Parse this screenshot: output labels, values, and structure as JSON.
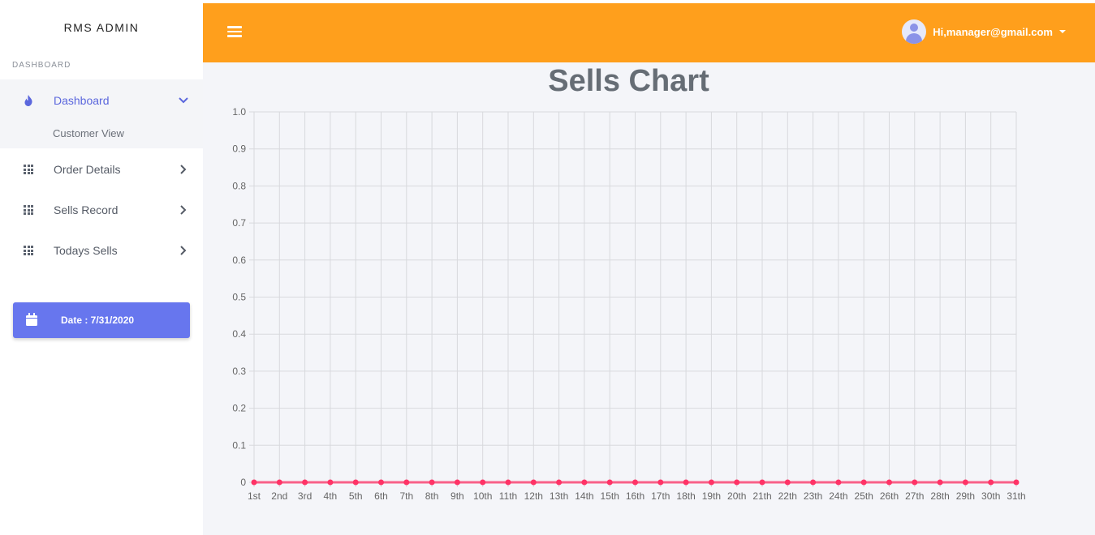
{
  "sidebar": {
    "brand": "RMS ADMIN",
    "section_label": "DASHBOARD",
    "items": [
      {
        "label": "Dashboard",
        "icon": "flame-icon",
        "active": true,
        "expanded": true
      },
      {
        "label": "Order Details",
        "icon": "grid-icon"
      },
      {
        "label": "Sells Record",
        "icon": "grid-icon"
      },
      {
        "label": "Todays Sells",
        "icon": "grid-icon"
      }
    ],
    "sub_items": [
      {
        "label": "Customer View"
      }
    ],
    "date_button": {
      "label": "Date : 7/31/2020",
      "icon": "calendar-icon"
    }
  },
  "header": {
    "menu_icon": "hamburger-icon",
    "user_label": "Hi,manager@gmail.com",
    "avatar_icon": "user-avatar-icon",
    "colors": {
      "bar": "#ff9f1c"
    }
  },
  "main": {
    "title": "Sells Chart"
  },
  "chart_data": {
    "type": "line",
    "title": "Sells Chart",
    "xlabel": "",
    "ylabel": "",
    "categories": [
      "1st",
      "2nd",
      "3rd",
      "4th",
      "5th",
      "6th",
      "7th",
      "8th",
      "9th",
      "10th",
      "11th",
      "12th",
      "13th",
      "14th",
      "15th",
      "16th",
      "17th",
      "18th",
      "19th",
      "20th",
      "21th",
      "22th",
      "23th",
      "24th",
      "25th",
      "26th",
      "27th",
      "28th",
      "29th",
      "30th",
      "31th"
    ],
    "values": [
      0,
      0,
      0,
      0,
      0,
      0,
      0,
      0,
      0,
      0,
      0,
      0,
      0,
      0,
      0,
      0,
      0,
      0,
      0,
      0,
      0,
      0,
      0,
      0,
      0,
      0,
      0,
      0,
      0,
      0,
      0
    ],
    "ylim": [
      0,
      1
    ],
    "yticks": [
      "0",
      "0.1",
      "0.2",
      "0.3",
      "0.4",
      "0.5",
      "0.6",
      "0.7",
      "0.8",
      "0.9",
      "1.0"
    ],
    "grid": true,
    "color": "#ff3366"
  }
}
